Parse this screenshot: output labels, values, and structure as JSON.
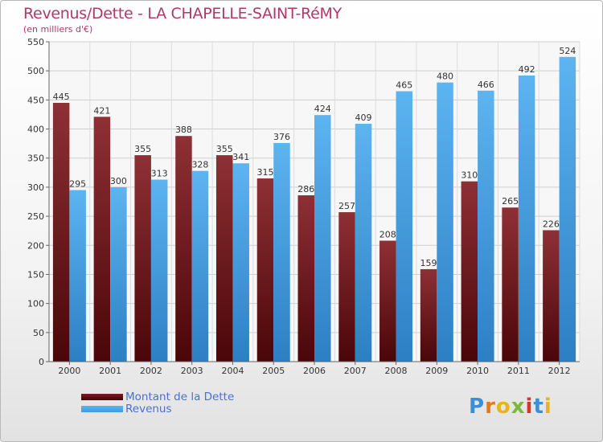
{
  "title": "Revenus/Dette - LA CHAPELLE-SAINT-RéMY",
  "subtitle": "(en milliers d'€)",
  "logo_text": "Proxiti",
  "colors": {
    "dette": "#7a1c22",
    "revenus": "#3e9be0",
    "title": "#b0386a",
    "legend_text": "#4a6fd6"
  },
  "chart_data": {
    "type": "bar",
    "categories": [
      "2000",
      "2001",
      "2002",
      "2003",
      "2004",
      "2005",
      "2006",
      "2007",
      "2008",
      "2009",
      "2010",
      "2011",
      "2012"
    ],
    "series": [
      {
        "name": "Montant de la Dette",
        "values": [
          445,
          421,
          355,
          388,
          355,
          315,
          286,
          257,
          208,
          159,
          310,
          265,
          226
        ]
      },
      {
        "name": "Revenus",
        "values": [
          295,
          300,
          313,
          328,
          341,
          376,
          424,
          409,
          465,
          480,
          466,
          492,
          524
        ]
      }
    ],
    "ylim": [
      0,
      550
    ],
    "yticks": [
      0,
      50,
      100,
      150,
      200,
      250,
      300,
      350,
      400,
      450,
      500,
      550
    ],
    "grid": true,
    "legend_position": "bottom-left"
  }
}
